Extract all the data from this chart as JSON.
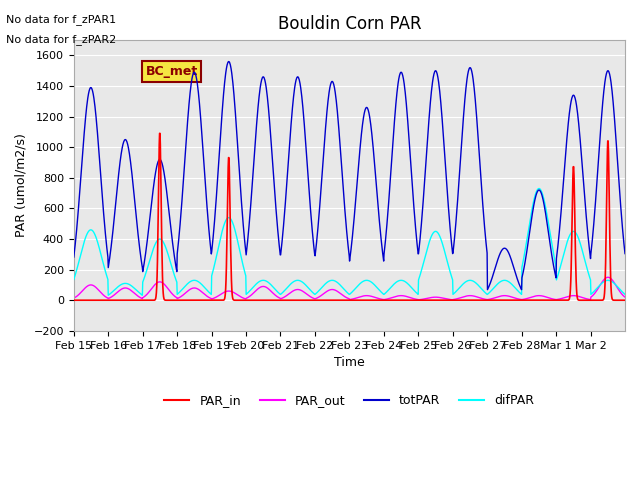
{
  "title": "Bouldin Corn PAR",
  "ylabel": "PAR (umol/m2/s)",
  "xlabel": "Time",
  "ylim": [
    -200,
    1700
  ],
  "yticks": [
    -200,
    0,
    200,
    400,
    600,
    800,
    1000,
    1200,
    1400,
    1600
  ],
  "annotation_lines": [
    "No data for f_zPAR1",
    "No data for f_zPAR2"
  ],
  "box_label": "BC_met",
  "box_color": "#f5e642",
  "box_text_color": "#8b0000",
  "colors": {
    "PAR_in": "#ff0000",
    "PAR_out": "#ff00ff",
    "totPAR": "#0000cc",
    "difPAR": "#00ffff"
  },
  "bg_color": "#e8e8e8",
  "n_days": 16,
  "x_tick_labels": [
    "Feb 15",
    "Feb 16",
    "Feb 17",
    "Feb 18",
    "Feb 19",
    "Feb 20",
    "Feb 21",
    "Feb 22",
    "Feb 23",
    "Feb 24",
    "Feb 25",
    "Feb 26",
    "Feb 27",
    "Feb 28",
    "Mar 1",
    "Mar 2"
  ],
  "totPAR_peaks": [
    1390,
    1050,
    920,
    1490,
    1560,
    1460,
    1460,
    1430,
    1260,
    1490,
    1500,
    1520,
    340,
    720,
    1340,
    1500
  ],
  "difPAR_peaks": [
    460,
    110,
    400,
    130,
    540,
    130,
    130,
    130,
    130,
    130,
    450,
    130,
    130,
    730,
    450,
    130
  ],
  "PAR_out_peaks": [
    100,
    80,
    120,
    80,
    60,
    90,
    70,
    70,
    30,
    30,
    20,
    30,
    30,
    30,
    30,
    150
  ],
  "PAR_in_peaks": [
    0,
    0,
    1100,
    0,
    940,
    0,
    0,
    0,
    0,
    0,
    0,
    0,
    0,
    0,
    880,
    1050
  ]
}
